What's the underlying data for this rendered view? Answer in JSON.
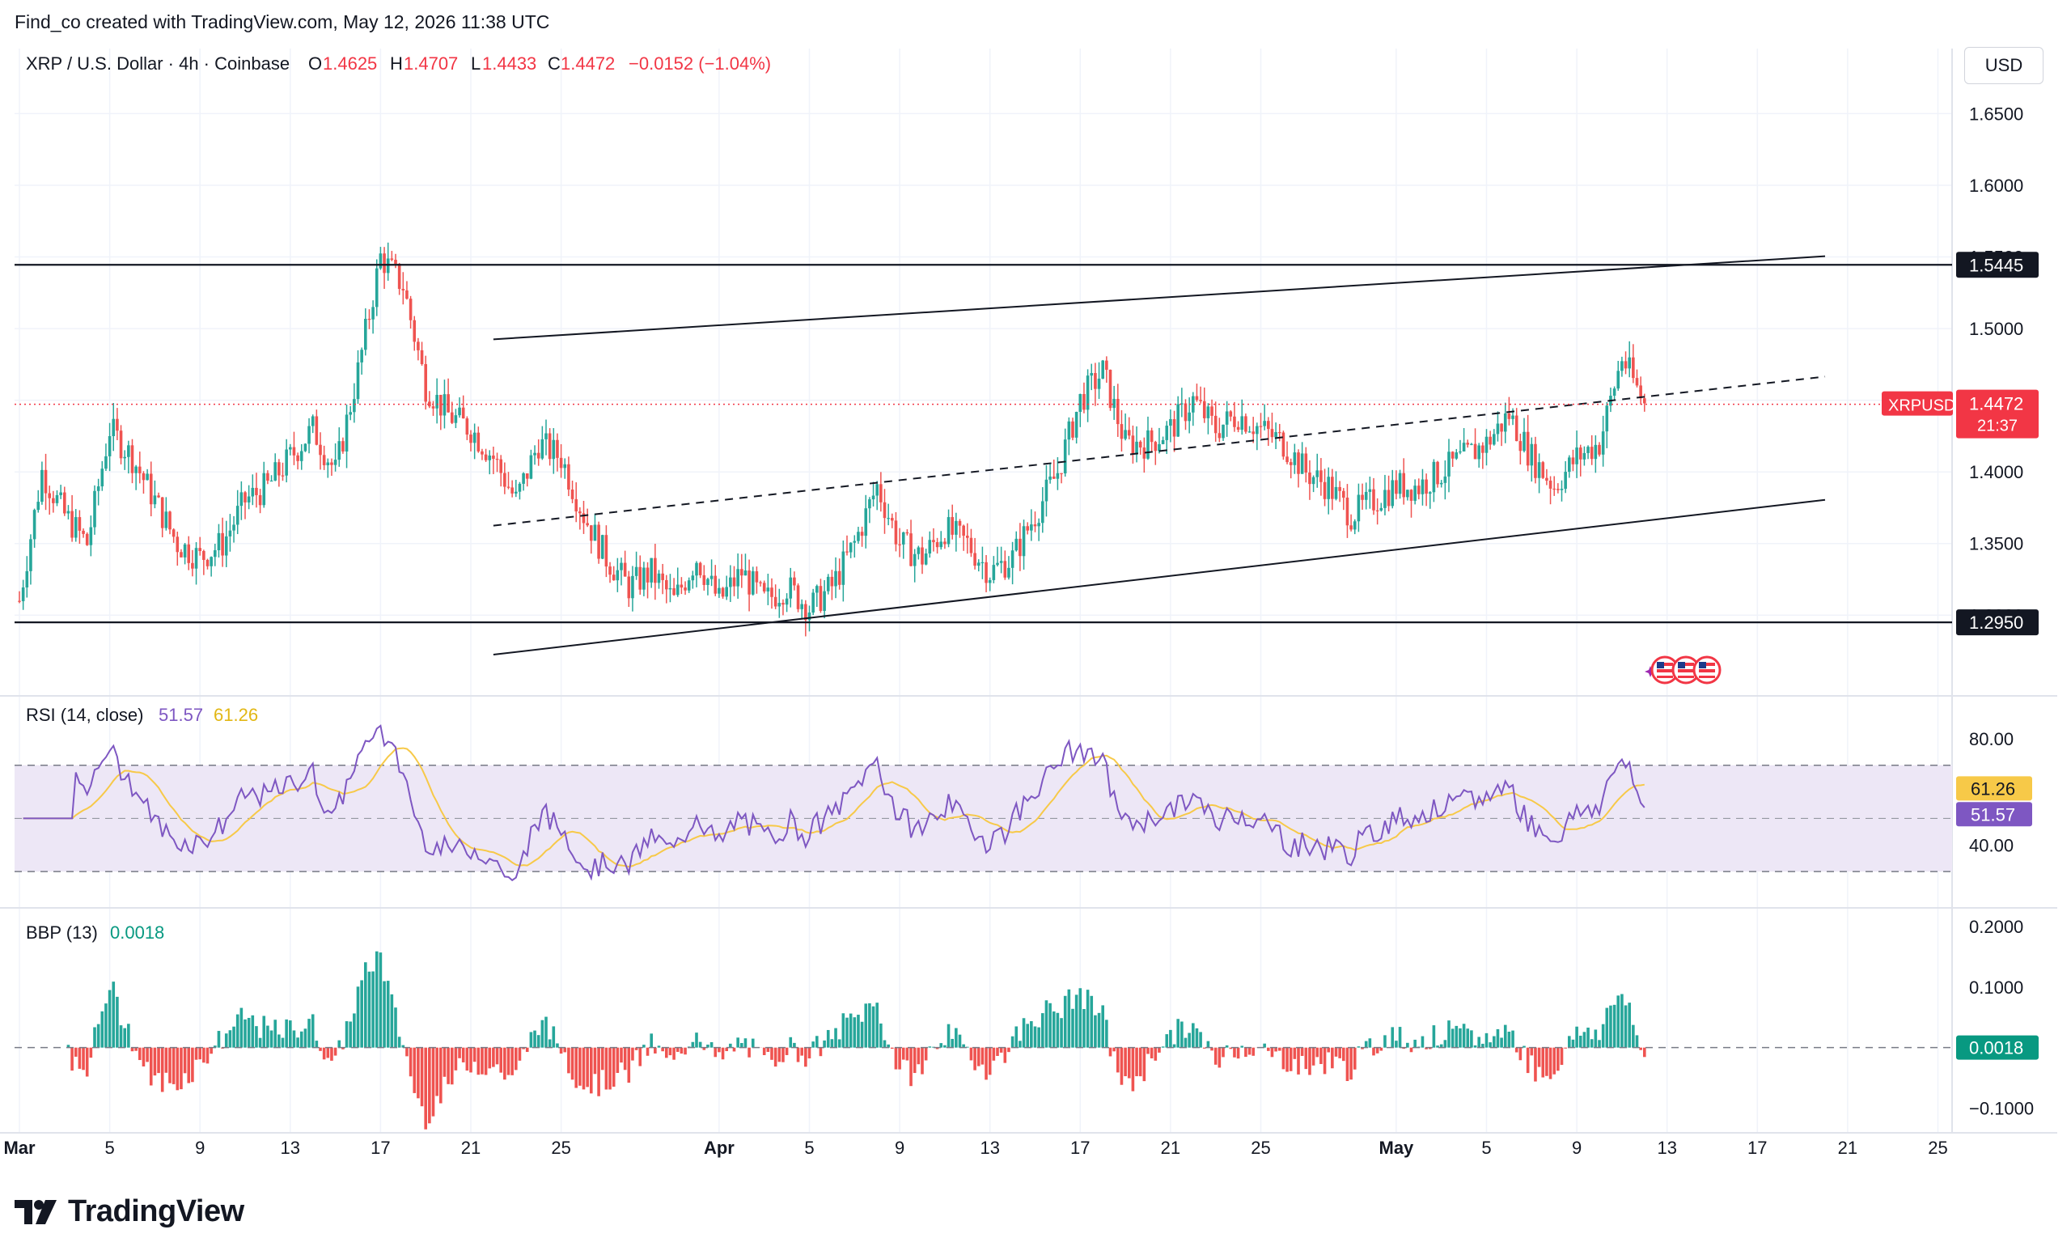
{
  "header": {
    "credit": "Find_co created with TradingView.com, May 12, 2026 11:38 UTC"
  },
  "symbol": {
    "title": "XRP / U.S. Dollar · 4h · Coinbase",
    "o_label": "O",
    "o_value": "1.4625",
    "h_label": "H",
    "h_value": "1.4707",
    "l_label": "L",
    "l_value": "1.4433",
    "c_label": "C",
    "c_value": "1.4472",
    "change": "−0.0152 (−1.04%)"
  },
  "currency_button": "USD",
  "price_axis": {
    "ticks": [
      "1.6500",
      "1.6000",
      "1.5500",
      "1.5000",
      "1.4500",
      "1.4000",
      "1.3500",
      "1.3000"
    ],
    "levels": [
      {
        "label": "1.5445",
        "value": 1.5445
      },
      {
        "label": "1.2950",
        "value": 1.295
      }
    ],
    "last_price_label": "1.4472",
    "last_price_symbol": "XRPUSD",
    "countdown": "21:37"
  },
  "rsi": {
    "title": "RSI (14, close)",
    "value": "51.57",
    "ma_value": "61.26",
    "ticks": [
      "80.00",
      "40.00"
    ],
    "upper_band": 70,
    "lower_band": 30,
    "mid": 50
  },
  "bbp": {
    "title": "BBP (13)",
    "value": "0.0018",
    "ticks": [
      "0.2000",
      "0.1000",
      "−0.1000"
    ]
  },
  "time_axis": {
    "labels": [
      "Mar",
      "5",
      "9",
      "13",
      "17",
      "21",
      "25",
      "Apr",
      "5",
      "9",
      "13",
      "17",
      "21",
      "25",
      "May",
      "5",
      "9",
      "13",
      "17",
      "21",
      "25"
    ]
  },
  "brand": {
    "name": "TradingView"
  },
  "colors": {
    "up": "#26a69a",
    "down": "#ef5350",
    "rsi_line": "#7e57c2",
    "rsi_ma": "#f7c948",
    "band_fill": "#ede7f6",
    "last_price": "#f23645"
  },
  "chart_data": {
    "type": "candlestick",
    "interval": "4h",
    "x_range": [
      "2026-03-01",
      "2026-05-25"
    ],
    "ylim": [
      1.255,
      1.67
    ],
    "horizontal_levels": [
      1.5445,
      1.295
    ],
    "trendlines": [
      {
        "name": "channel-upper",
        "style": "solid",
        "from": [
          "2026-03-22",
          1.4925
        ],
        "to": [
          "2026-05-20",
          1.5505
        ]
      },
      {
        "name": "channel-mid",
        "style": "dashed",
        "from": [
          "2026-03-22",
          1.3625
        ],
        "to": [
          "2026-05-20",
          1.4665
        ]
      },
      {
        "name": "channel-lower",
        "style": "solid",
        "from": [
          "2026-03-22",
          1.2725
        ],
        "to": [
          "2026-05-20",
          1.3805
        ]
      }
    ],
    "close_path": [
      [
        "2026-03-01",
        1.31
      ],
      [
        "2026-03-02",
        1.4
      ],
      [
        "2026-03-03",
        1.37
      ],
      [
        "2026-03-04",
        1.35
      ],
      [
        "2026-03-05",
        1.43
      ],
      [
        "2026-03-06",
        1.41
      ],
      [
        "2026-03-07",
        1.38
      ],
      [
        "2026-03-08",
        1.35
      ],
      [
        "2026-03-09",
        1.34
      ],
      [
        "2026-03-10",
        1.35
      ],
      [
        "2026-03-11",
        1.38
      ],
      [
        "2026-03-12",
        1.39
      ],
      [
        "2026-03-13",
        1.41
      ],
      [
        "2026-03-14",
        1.43
      ],
      [
        "2026-03-15",
        1.4
      ],
      [
        "2026-03-16",
        1.47
      ],
      [
        "2026-03-17",
        1.55
      ],
      [
        "2026-03-18",
        1.53
      ],
      [
        "2026-03-19",
        1.46
      ],
      [
        "2026-03-20",
        1.44
      ],
      [
        "2026-03-21",
        1.43
      ],
      [
        "2026-03-22",
        1.41
      ],
      [
        "2026-03-23",
        1.38
      ],
      [
        "2026-03-24",
        1.42
      ],
      [
        "2026-03-25",
        1.41
      ],
      [
        "2026-03-26",
        1.37
      ],
      [
        "2026-03-27",
        1.34
      ],
      [
        "2026-03-28",
        1.32
      ],
      [
        "2026-03-29",
        1.33
      ],
      [
        "2026-03-30",
        1.31
      ],
      [
        "2026-03-31",
        1.34
      ],
      [
        "2026-04-01",
        1.31
      ],
      [
        "2026-04-02",
        1.33
      ],
      [
        "2026-04-03",
        1.31
      ],
      [
        "2026-04-04",
        1.32
      ],
      [
        "2026-04-05",
        1.305
      ],
      [
        "2026-04-06",
        1.32
      ],
      [
        "2026-04-07",
        1.35
      ],
      [
        "2026-04-08",
        1.39
      ],
      [
        "2026-04-09",
        1.35
      ],
      [
        "2026-04-10",
        1.34
      ],
      [
        "2026-04-11",
        1.36
      ],
      [
        "2026-04-12",
        1.35
      ],
      [
        "2026-04-13",
        1.33
      ],
      [
        "2026-04-14",
        1.34
      ],
      [
        "2026-04-15",
        1.37
      ],
      [
        "2026-04-16",
        1.4
      ],
      [
        "2026-04-17",
        1.45
      ],
      [
        "2026-04-18",
        1.47
      ],
      [
        "2026-04-19",
        1.42
      ],
      [
        "2026-04-20",
        1.42
      ],
      [
        "2026-04-21",
        1.43
      ],
      [
        "2026-04-22",
        1.45
      ],
      [
        "2026-04-23",
        1.43
      ],
      [
        "2026-04-24",
        1.44
      ],
      [
        "2026-04-25",
        1.43
      ],
      [
        "2026-04-26",
        1.42
      ],
      [
        "2026-04-27",
        1.4
      ],
      [
        "2026-04-28",
        1.39
      ],
      [
        "2026-04-29",
        1.37
      ],
      [
        "2026-04-30",
        1.38
      ],
      [
        "2026-05-01",
        1.39
      ],
      [
        "2026-05-02",
        1.39
      ],
      [
        "2026-05-03",
        1.4
      ],
      [
        "2026-05-04",
        1.41
      ],
      [
        "2026-05-05",
        1.42
      ],
      [
        "2026-05-06",
        1.44
      ],
      [
        "2026-05-07",
        1.41
      ],
      [
        "2026-05-08",
        1.39
      ],
      [
        "2026-05-09",
        1.41
      ],
      [
        "2026-05-10",
        1.42
      ],
      [
        "2026-05-11",
        1.48
      ],
      [
        "2026-05-12",
        1.4472
      ]
    ]
  }
}
